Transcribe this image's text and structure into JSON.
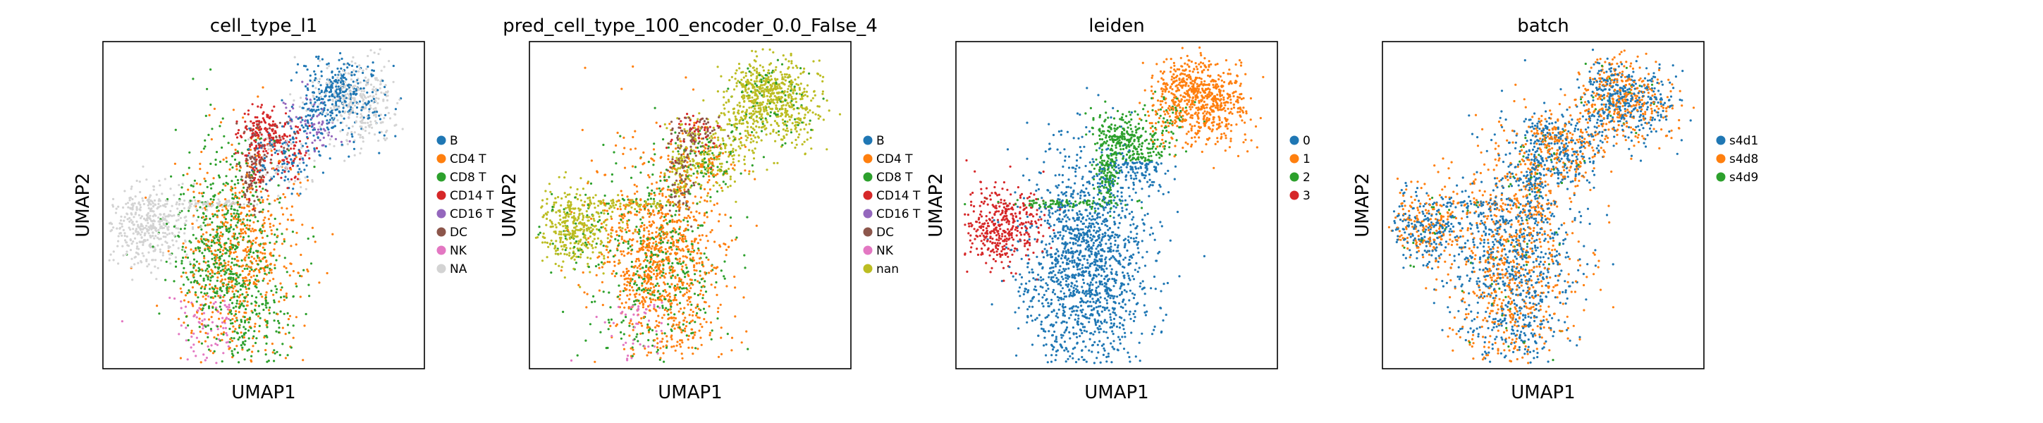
{
  "figure": {
    "background": "#ffffff"
  },
  "chart_data": [
    {
      "type": "scatter",
      "title": "cell_type_l1",
      "xlabel": "UMAP1",
      "ylabel": "UMAP2",
      "grid": false,
      "ticks": false,
      "legend_position": "right",
      "legend": [
        {
          "label": "B",
          "color": "#1f77b4"
        },
        {
          "label": "CD4 T",
          "color": "#ff7f0e"
        },
        {
          "label": "CD8 T",
          "color": "#2ca02c"
        },
        {
          "label": "CD14 T",
          "color": "#d62728"
        },
        {
          "label": "CD16 T",
          "color": "#9467bd"
        },
        {
          "label": "DC",
          "color": "#8c564b"
        },
        {
          "label": "NK",
          "color": "#e377c2"
        },
        {
          "label": "NA",
          "color": "#d3d3d3"
        }
      ]
    },
    {
      "type": "scatter",
      "title": "pred_cell_type_100_encoder_0.0_False_4",
      "xlabel": "UMAP1",
      "ylabel": "UMAP2",
      "grid": false,
      "ticks": false,
      "legend_position": "right",
      "legend": [
        {
          "label": "B",
          "color": "#1f77b4"
        },
        {
          "label": "CD4 T",
          "color": "#ff7f0e"
        },
        {
          "label": "CD8 T",
          "color": "#2ca02c"
        },
        {
          "label": "CD14 T",
          "color": "#d62728"
        },
        {
          "label": "CD16 T",
          "color": "#9467bd"
        },
        {
          "label": "DC",
          "color": "#8c564b"
        },
        {
          "label": "NK",
          "color": "#e377c2"
        },
        {
          "label": "nan",
          "color": "#bcbd22"
        }
      ]
    },
    {
      "type": "scatter",
      "title": "leiden",
      "xlabel": "UMAP1",
      "ylabel": "UMAP2",
      "grid": false,
      "ticks": false,
      "legend_position": "right",
      "legend": [
        {
          "label": "0",
          "color": "#1f77b4"
        },
        {
          "label": "1",
          "color": "#ff7f0e"
        },
        {
          "label": "2",
          "color": "#2ca02c"
        },
        {
          "label": "3",
          "color": "#d62728"
        }
      ]
    },
    {
      "type": "scatter",
      "title": "batch",
      "xlabel": "UMAP1",
      "ylabel": "UMAP2",
      "grid": false,
      "ticks": false,
      "legend_position": "right",
      "legend": [
        {
          "label": "s4d1",
          "color": "#1f77b4"
        },
        {
          "label": "s4d8",
          "color": "#ff7f0e"
        },
        {
          "label": "s4d9",
          "color": "#2ca02c"
        }
      ]
    }
  ]
}
